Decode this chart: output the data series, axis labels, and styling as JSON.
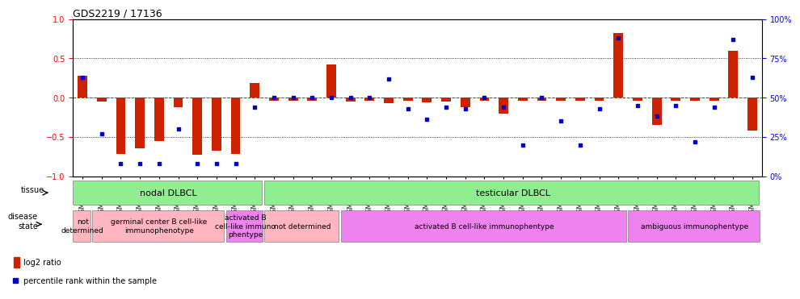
{
  "title": "GDS2219 / 17136",
  "samples": [
    "GSM94786",
    "GSM94794",
    "GSM94779",
    "GSM94789",
    "GSM94791",
    "GSM94793",
    "GSM94795",
    "GSM94782",
    "GSM94792",
    "GSM94796",
    "GSM94797",
    "GSM94799",
    "GSM94800",
    "GSM94811",
    "GSM94802",
    "GSM94804",
    "GSM94805",
    "GSM94806",
    "GSM94808",
    "GSM94809",
    "GSM94810",
    "GSM94812",
    "GSM94814",
    "GSM94815",
    "GSM94817",
    "GSM94818",
    "GSM94819",
    "GSM94820",
    "GSM94798",
    "GSM94801",
    "GSM94803",
    "GSM94807",
    "GSM94813",
    "GSM94816",
    "GSM94821",
    "GSM94822"
  ],
  "log2_ratio": [
    0.28,
    -0.05,
    -0.72,
    -0.65,
    -0.55,
    -0.12,
    -0.73,
    -0.68,
    -0.72,
    0.18,
    -0.04,
    -0.04,
    -0.04,
    0.42,
    -0.05,
    -0.04,
    -0.07,
    -0.04,
    -0.06,
    -0.05,
    -0.12,
    -0.04,
    -0.2,
    -0.04,
    -0.04,
    -0.04,
    -0.04,
    -0.04,
    0.82,
    -0.04,
    -0.35,
    -0.04,
    -0.04,
    -0.04,
    0.6,
    -0.42
  ],
  "percentile": [
    63,
    27,
    8,
    8,
    8,
    30,
    8,
    8,
    8,
    44,
    50,
    50,
    50,
    50,
    50,
    50,
    62,
    43,
    36,
    44,
    43,
    50,
    44,
    20,
    50,
    35,
    20,
    43,
    88,
    45,
    38,
    45,
    22,
    44,
    87,
    63
  ],
  "tissue_groups": [
    {
      "label": "nodal DLBCL",
      "start": 0,
      "end": 9,
      "color": "#90EE90"
    },
    {
      "label": "testicular DLBCL",
      "start": 10,
      "end": 35,
      "color": "#90EE90"
    }
  ],
  "disease_groups": [
    {
      "label": "not\ndetermined",
      "start": 0,
      "end": 0,
      "color": "#FFB6C1"
    },
    {
      "label": "germinal center B cell-like\nimmunophenotype",
      "start": 1,
      "end": 7,
      "color": "#FFB6C1"
    },
    {
      "label": "activated B\ncell-like immuno\nphentype",
      "start": 8,
      "end": 9,
      "color": "#FF69B4"
    },
    {
      "label": "not determined",
      "start": 10,
      "end": 13,
      "color": "#FFB6C1"
    },
    {
      "label": "activated B cell-like immunophentype",
      "start": 14,
      "end": 28,
      "color": "#FF69B4"
    },
    {
      "label": "ambiguous immunophentype",
      "start": 29,
      "end": 35,
      "color": "#FF69B4"
    }
  ],
  "ylim": [
    -1,
    1
  ],
  "yticks": [
    -1,
    -0.5,
    0,
    0.5,
    1
  ],
  "yticks_right": [
    0,
    25,
    50,
    75,
    100
  ],
  "bar_color": "#CC2200",
  "dot_color": "#0000CC",
  "background_color": "#ffffff"
}
